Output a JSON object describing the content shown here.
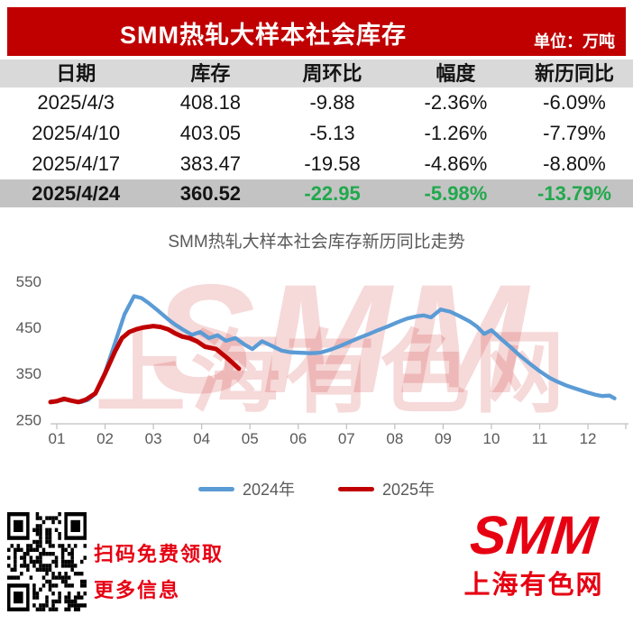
{
  "banner": {
    "title": "SMM热轧大样本社会库存",
    "unit_label": "单位：万吨"
  },
  "table": {
    "headers": [
      "日期",
      "库存",
      "周环比",
      "幅度",
      "新历同比"
    ],
    "rows": [
      {
        "date": "2025/4/3",
        "inventory": "408.18",
        "wow": "-9.88",
        "pct": "-2.36%",
        "yoy": "-6.09%",
        "highlight": false
      },
      {
        "date": "2025/4/10",
        "inventory": "403.05",
        "wow": "-5.13",
        "pct": "-1.26%",
        "yoy": "-7.79%",
        "highlight": false
      },
      {
        "date": "2025/4/17",
        "inventory": "383.47",
        "wow": "-19.58",
        "pct": "-4.86%",
        "yoy": "-8.80%",
        "highlight": false
      },
      {
        "date": "2025/4/24",
        "inventory": "360.52",
        "wow": "-22.95",
        "pct": "-5.98%",
        "yoy": "-13.79%",
        "highlight": true
      }
    ],
    "highlight_value_color": "#21a84d"
  },
  "chart_data": {
    "type": "line",
    "title": "SMM热轧大样本社会库存新历同比走势",
    "xlabel": "",
    "ylabel": "",
    "x_ticks": [
      "01",
      "02",
      "03",
      "04",
      "05",
      "06",
      "07",
      "08",
      "09",
      "10",
      "11",
      "12"
    ],
    "y_ticks": [
      550,
      450,
      350,
      250
    ],
    "ylim": [
      250,
      550
    ],
    "xlim": [
      0.85,
      12.7
    ],
    "grid": false,
    "legend_position": "bottom",
    "x_unit": "month",
    "series": [
      {
        "name": "2024年",
        "color": "#5b9bd5",
        "points": [
          [
            0.87,
            289
          ],
          [
            1.0,
            290
          ],
          [
            1.2,
            294
          ],
          [
            1.35,
            290
          ],
          [
            1.5,
            288
          ],
          [
            1.65,
            293
          ],
          [
            1.8,
            306
          ],
          [
            2.0,
            352
          ],
          [
            2.2,
            415
          ],
          [
            2.4,
            478
          ],
          [
            2.6,
            518
          ],
          [
            2.75,
            514
          ],
          [
            2.9,
            503
          ],
          [
            3.1,
            486
          ],
          [
            3.3,
            468
          ],
          [
            3.45,
            456
          ],
          [
            3.6,
            446
          ],
          [
            3.8,
            434
          ],
          [
            3.97,
            440
          ],
          [
            4.15,
            427
          ],
          [
            4.33,
            433
          ],
          [
            4.5,
            421
          ],
          [
            4.7,
            427
          ],
          [
            4.9,
            412
          ],
          [
            5.05,
            403
          ],
          [
            5.25,
            420
          ],
          [
            5.45,
            410
          ],
          [
            5.65,
            400
          ],
          [
            5.85,
            396
          ],
          [
            6.05,
            395
          ],
          [
            6.25,
            394
          ],
          [
            6.45,
            395
          ],
          [
            6.65,
            401
          ],
          [
            6.85,
            409
          ],
          [
            7.05,
            418
          ],
          [
            7.25,
            427
          ],
          [
            7.45,
            435
          ],
          [
            7.65,
            444
          ],
          [
            7.85,
            452
          ],
          [
            8.05,
            461
          ],
          [
            8.25,
            469
          ],
          [
            8.45,
            474
          ],
          [
            8.6,
            476
          ],
          [
            8.75,
            472
          ],
          [
            8.95,
            489
          ],
          [
            9.15,
            484
          ],
          [
            9.35,
            474
          ],
          [
            9.55,
            463
          ],
          [
            9.7,
            452
          ],
          [
            9.85,
            436
          ],
          [
            10.0,
            444
          ],
          [
            10.2,
            425
          ],
          [
            10.4,
            407
          ],
          [
            10.6,
            388
          ],
          [
            10.8,
            371
          ],
          [
            11.0,
            355
          ],
          [
            11.2,
            341
          ],
          [
            11.35,
            333
          ],
          [
            11.55,
            324
          ],
          [
            11.75,
            317
          ],
          [
            11.95,
            310
          ],
          [
            12.15,
            304
          ],
          [
            12.3,
            301
          ],
          [
            12.45,
            302
          ],
          [
            12.55,
            296
          ]
        ]
      },
      {
        "name": "2025年",
        "color": "#c00000",
        "points": [
          [
            0.87,
            288
          ],
          [
            1.0,
            290
          ],
          [
            1.15,
            295
          ],
          [
            1.3,
            291
          ],
          [
            1.45,
            288
          ],
          [
            1.6,
            293
          ],
          [
            1.8,
            307
          ],
          [
            2.0,
            350
          ],
          [
            2.2,
            397
          ],
          [
            2.35,
            427
          ],
          [
            2.5,
            440
          ],
          [
            2.65,
            446
          ],
          [
            2.8,
            450
          ],
          [
            3.0,
            453
          ],
          [
            3.15,
            451
          ],
          [
            3.3,
            446
          ],
          [
            3.45,
            437
          ],
          [
            3.6,
            430
          ],
          [
            3.75,
            427
          ],
          [
            3.9,
            420
          ],
          [
            4.07,
            408.18
          ],
          [
            4.3,
            403.05
          ],
          [
            4.53,
            383.47
          ],
          [
            4.77,
            360.52
          ]
        ]
      }
    ]
  },
  "watermark": {
    "line1": "SMM",
    "line2": "上海有色网"
  },
  "qr": {
    "caption_line1": "扫码免费领取",
    "caption_line2": "更多信息"
  },
  "logo": {
    "brand": "SMM",
    "name": "上海有色网"
  },
  "colors": {
    "banner_red": "#c00000",
    "bright_red": "#e60012",
    "green": "#21a84d",
    "header_gray": "#d9d9d9",
    "highlight_gray": "#c3c3c3",
    "axis_text": "#595959",
    "axis_line": "#bfbfbf"
  }
}
